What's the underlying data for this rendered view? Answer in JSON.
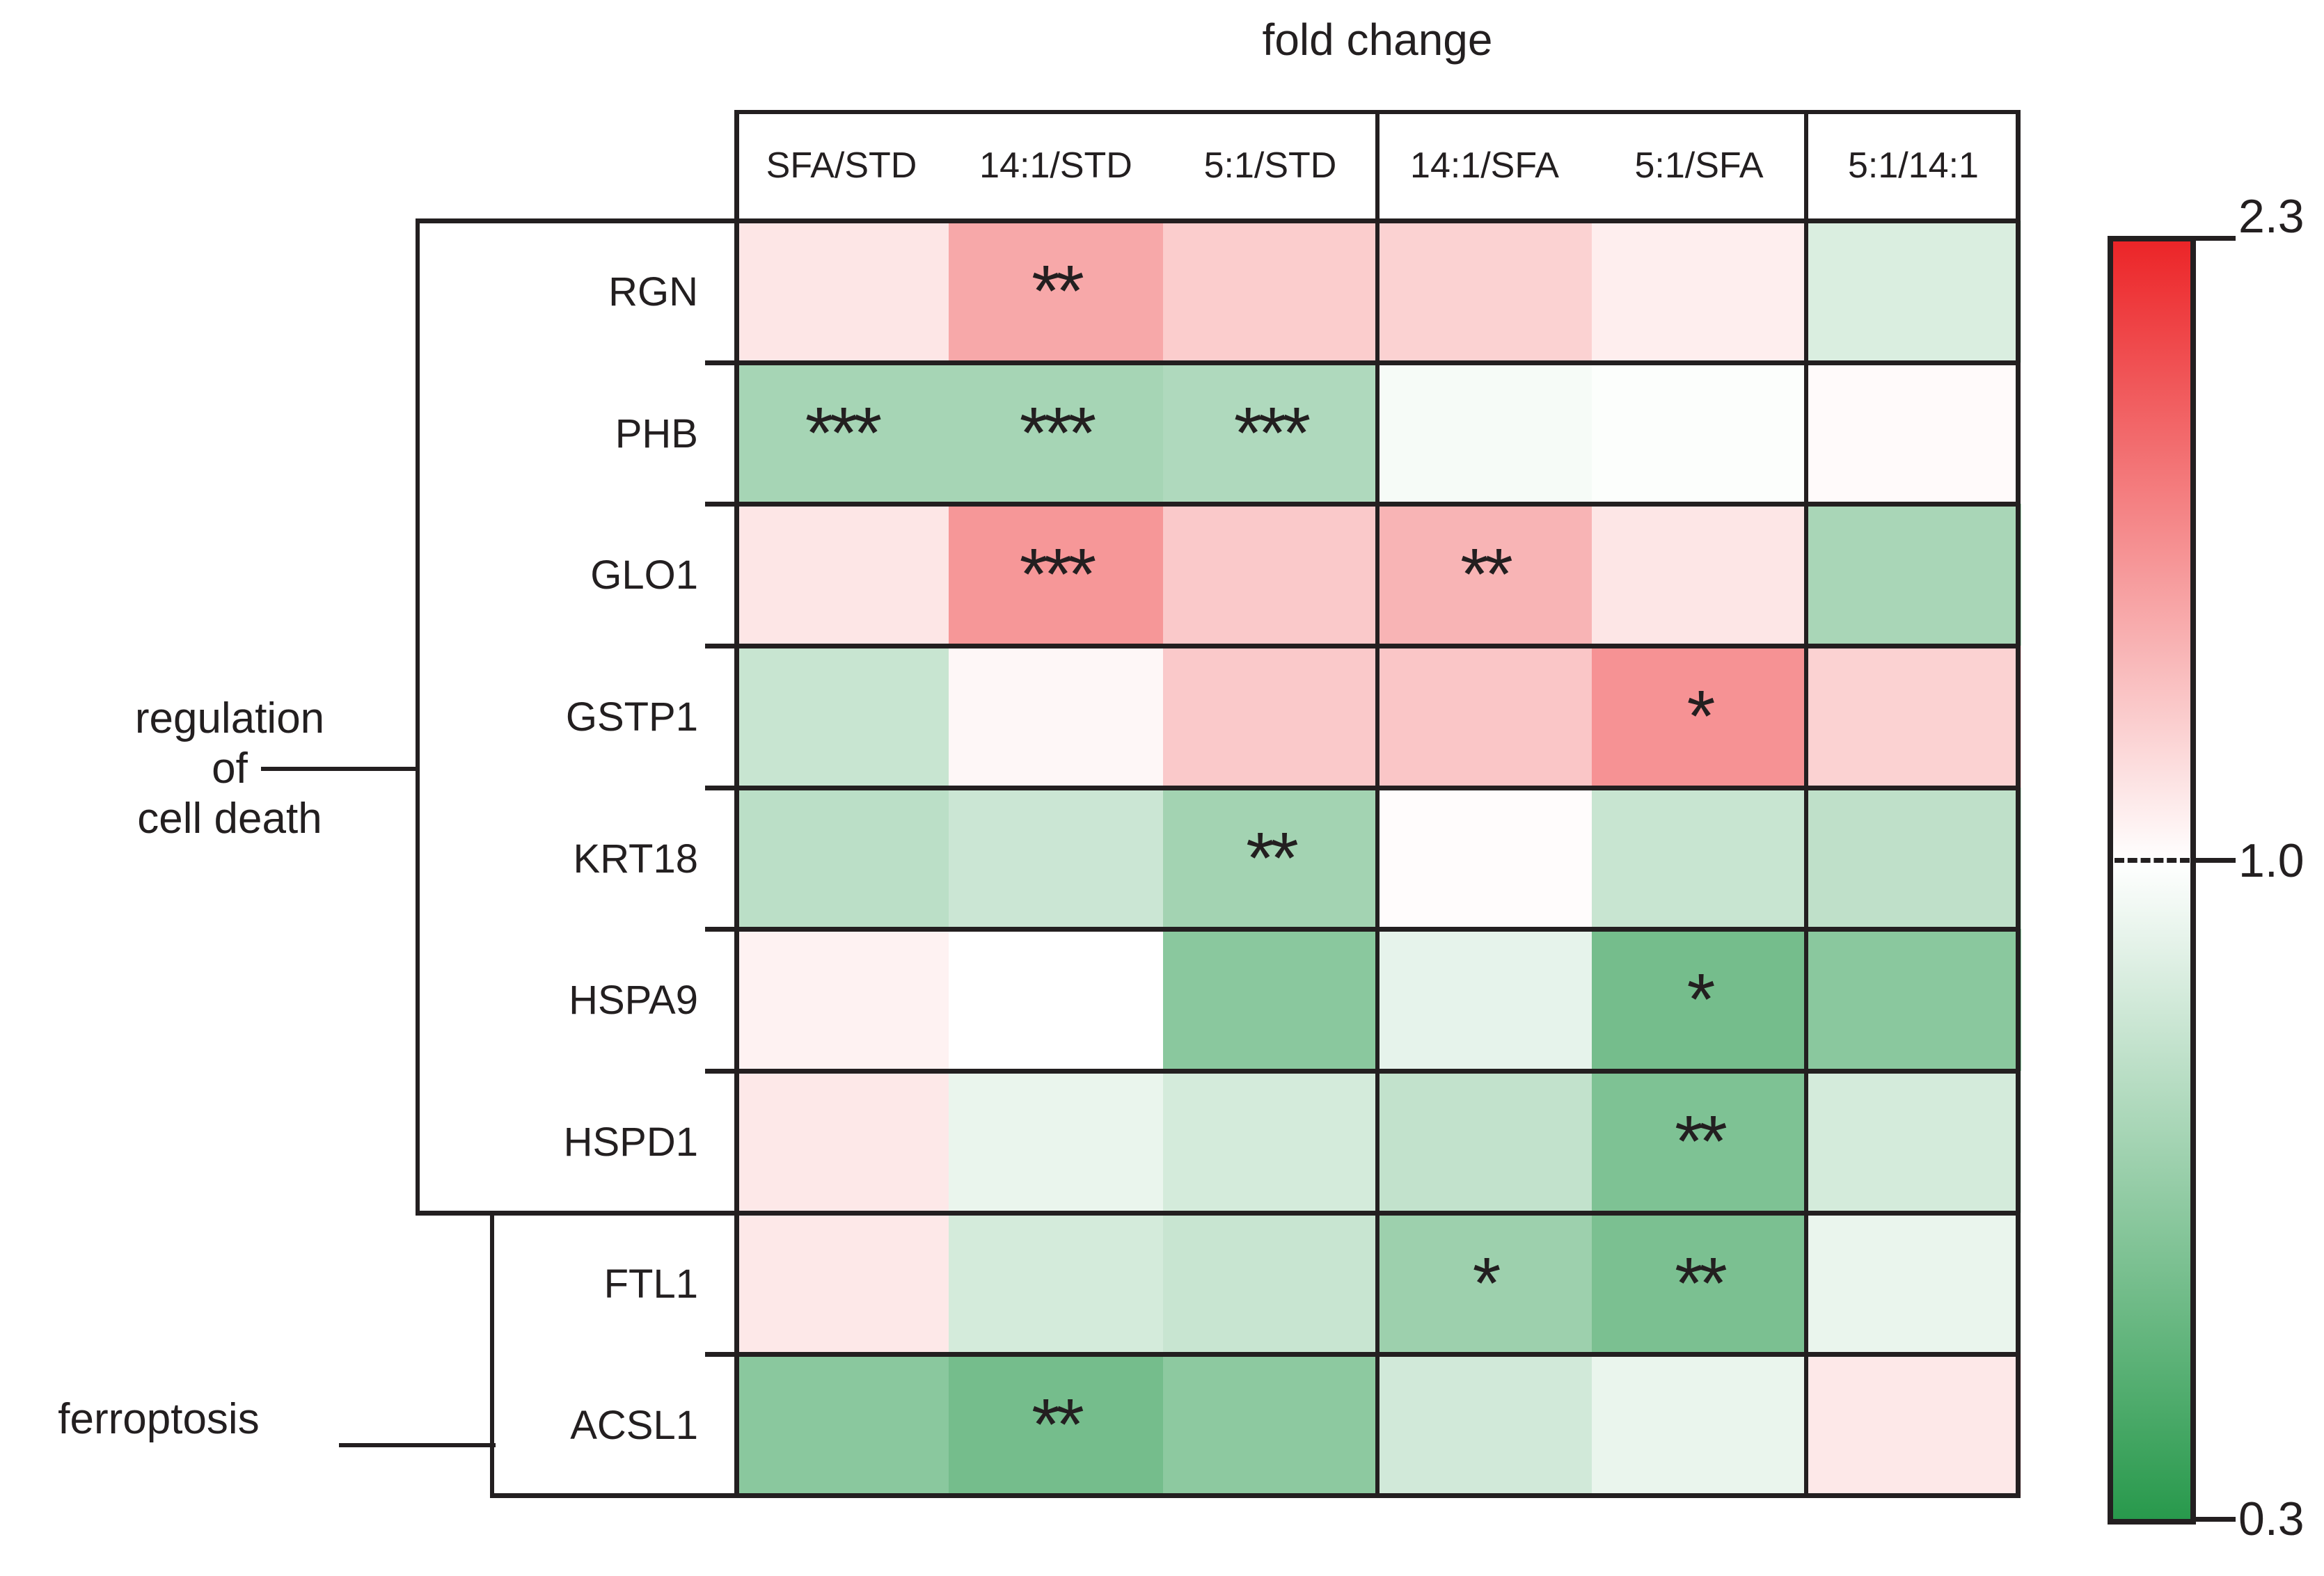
{
  "title": "fold change",
  "chart_data": {
    "type": "heatmap",
    "title": "fold change",
    "xlabel": "",
    "ylabel": "",
    "legend_position": "right",
    "columns": [
      "SFA/STD",
      "14:1/STD",
      "5:1/STD",
      "14:1/SFA",
      "5:1/SFA",
      "5:1/14:1"
    ],
    "column_group_separators_after": [
      2,
      4
    ],
    "rows": [
      {
        "gene": "RGN",
        "values": [
          1.15,
          1.52,
          1.3,
          1.27,
          1.1,
          0.88
        ],
        "significance": [
          "",
          "**",
          "",
          "",
          "",
          ""
        ]
      },
      {
        "gene": "PHB",
        "values": [
          0.71,
          0.71,
          0.74,
          0.97,
          0.99,
          1.03
        ],
        "significance": [
          "***",
          "***",
          "***",
          "",
          "",
          ""
        ]
      },
      {
        "gene": "GLO1",
        "values": [
          1.15,
          1.62,
          1.32,
          1.45,
          1.15,
          0.72
        ],
        "significance": [
          "",
          "***",
          "",
          "**",
          "",
          ""
        ]
      },
      {
        "gene": "GSTP1",
        "values": [
          0.82,
          1.05,
          1.32,
          1.34,
          1.65,
          1.27
        ],
        "significance": [
          "",
          "",
          "",
          "",
          "*",
          ""
        ]
      },
      {
        "gene": "KRT18",
        "values": [
          0.78,
          0.83,
          0.7,
          1.02,
          0.82,
          0.79
        ],
        "significance": [
          "",
          "",
          "**",
          "",
          "",
          ""
        ]
      },
      {
        "gene": "HSPA9",
        "values": [
          1.08,
          1.0,
          0.62,
          0.92,
          0.55,
          0.62
        ],
        "significance": [
          "",
          "",
          "",
          "",
          "*",
          ""
        ]
      },
      {
        "gene": "HSPD1",
        "values": [
          1.14,
          0.93,
          0.86,
          0.8,
          0.58,
          0.86
        ],
        "significance": [
          "",
          "",
          "",
          "",
          "**",
          ""
        ]
      },
      {
        "gene": "FTL1",
        "values": [
          1.14,
          0.86,
          0.82,
          0.68,
          0.57,
          0.93
        ],
        "significance": [
          "",
          "",
          "",
          "*",
          "**",
          ""
        ]
      },
      {
        "gene": "ACSL1",
        "values": [
          0.62,
          0.55,
          0.63,
          0.85,
          0.93,
          1.14
        ],
        "significance": [
          "",
          "**",
          "",
          "",
          "",
          ""
        ]
      }
    ],
    "row_groups": [
      {
        "label_lines": [
          "regulation",
          "of",
          "cell death"
        ],
        "row_start": 0,
        "row_end": 6
      },
      {
        "label_lines": [
          "ferroptosis"
        ],
        "row_start": 7,
        "row_end": 8
      }
    ],
    "colorbar": {
      "top_label": "2.3",
      "mid_label": "1.0",
      "bottom_label": "0.3",
      "top_value": 2.3,
      "mid_value": 1.0,
      "bottom_value": 0.3,
      "top_color": "#ec2528",
      "mid_color": "#ffffff",
      "bottom_color": "#28994c"
    }
  }
}
